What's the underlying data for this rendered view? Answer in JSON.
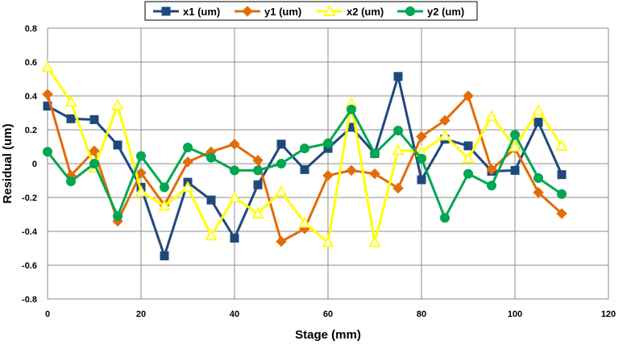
{
  "chart_data": {
    "type": "line",
    "title": "",
    "xlabel": "Stage (mm)",
    "ylabel": "Residual (um)",
    "xlim": [
      0,
      120
    ],
    "ylim": [
      -0.8,
      0.8
    ],
    "xticks": [
      0,
      20,
      40,
      60,
      80,
      100,
      120
    ],
    "yticks": [
      -0.8,
      -0.6,
      -0.4,
      -0.2,
      0,
      0.2,
      0.4,
      0.6,
      0.8
    ],
    "xtick_labels": [
      "0",
      "20",
      "40",
      "60",
      "80",
      "100",
      "120"
    ],
    "ytick_labels": [
      "-0.8",
      "-0.6",
      "-0.4",
      "-0.2",
      "0",
      "0.2",
      "0.4",
      "0.6",
      "0.8"
    ],
    "grid": true,
    "legend_position": "top",
    "x": [
      0,
      5,
      10,
      15,
      20,
      25,
      30,
      35,
      40,
      45,
      50,
      55,
      60,
      65,
      70,
      75,
      80,
      85,
      90,
      95,
      100,
      105,
      110
    ],
    "series": [
      {
        "name": "x1 (um)",
        "color": "#1f497d",
        "marker": "square",
        "values": [
          0.34,
          0.265,
          0.26,
          0.11,
          -0.14,
          -0.545,
          -0.11,
          -0.215,
          -0.44,
          -0.125,
          0.115,
          -0.035,
          0.09,
          0.215,
          0.06,
          0.515,
          -0.095,
          0.145,
          0.105,
          -0.045,
          -0.04,
          0.245,
          -0.065
        ]
      },
      {
        "name": "y1 (um)",
        "color": "#e36c09",
        "marker": "diamond",
        "values": [
          0.41,
          -0.07,
          0.075,
          -0.34,
          -0.055,
          -0.245,
          0.01,
          0.07,
          0.115,
          0.02,
          -0.46,
          -0.385,
          -0.07,
          -0.04,
          -0.06,
          -0.145,
          0.16,
          0.255,
          0.4,
          -0.035,
          0.09,
          -0.17,
          -0.295
        ]
      },
      {
        "name": "x2 (um)",
        "color": "#ffff00",
        "marker": "triangle",
        "values": [
          0.57,
          0.365,
          -0.025,
          0.345,
          -0.165,
          -0.25,
          -0.14,
          -0.425,
          -0.2,
          -0.295,
          -0.165,
          -0.35,
          -0.465,
          0.355,
          -0.465,
          0.08,
          0.07,
          0.165,
          0.03,
          0.28,
          0.1,
          0.315,
          0.105
        ]
      },
      {
        "name": "y2 (um)",
        "color": "#00a651",
        "marker": "circle",
        "values": [
          0.07,
          -0.105,
          0.0,
          -0.31,
          0.045,
          -0.14,
          0.095,
          0.035,
          -0.04,
          -0.04,
          0.0,
          0.09,
          0.12,
          0.32,
          0.06,
          0.195,
          0.03,
          -0.32,
          -0.06,
          -0.13,
          0.17,
          -0.085,
          -0.18
        ]
      }
    ]
  }
}
